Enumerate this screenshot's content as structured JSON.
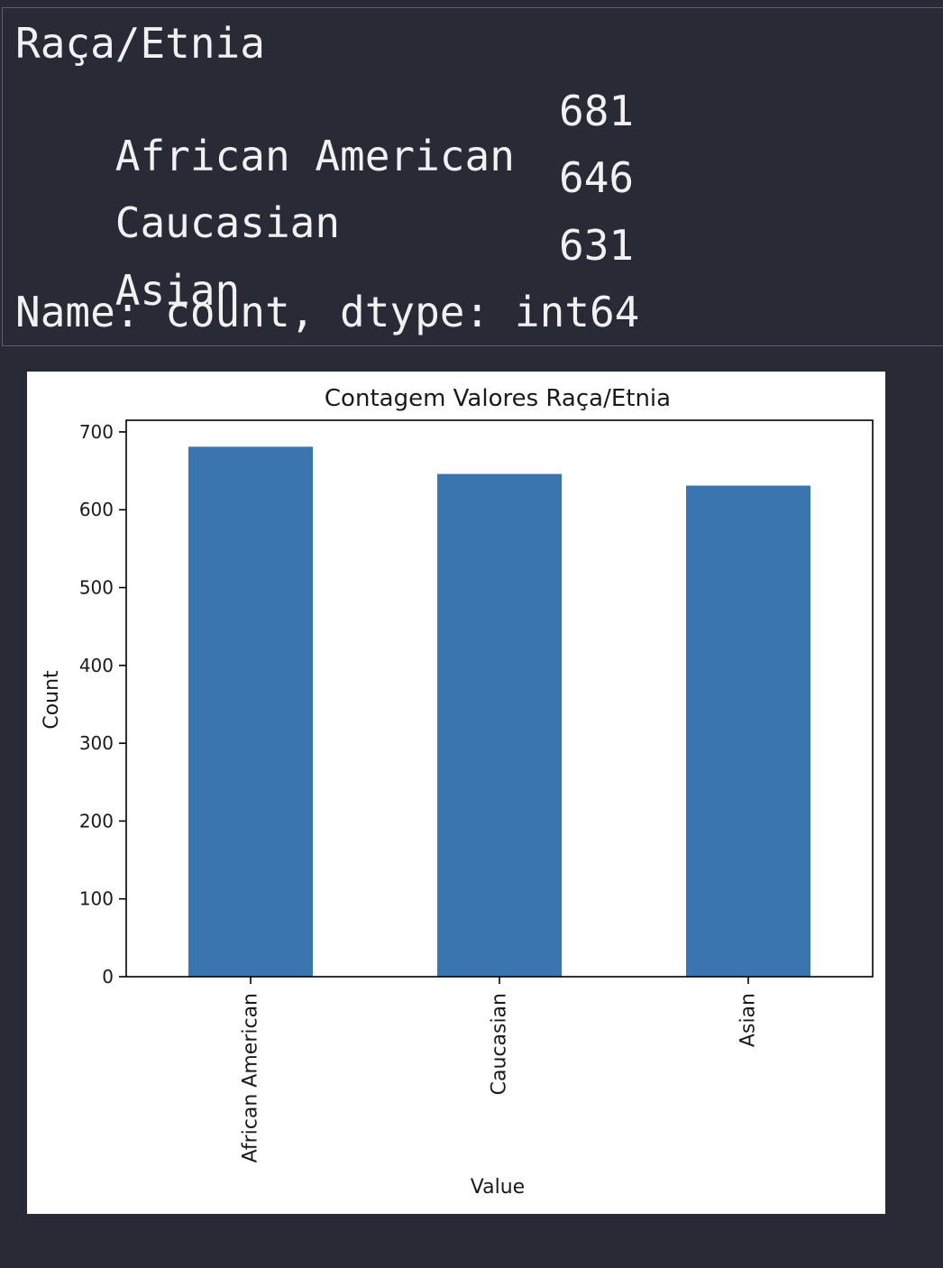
{
  "output": {
    "header": "Raça/Etnia",
    "rows": [
      {
        "label": "African American",
        "value": "681"
      },
      {
        "label": "Caucasian",
        "value": "646"
      },
      {
        "label": "Asian",
        "value": "631"
      }
    ],
    "footer": "Name: count, dtype: int64"
  },
  "chart_data": {
    "type": "bar",
    "title": "Contagem Valores Raça/Etnia",
    "xlabel": "Value",
    "ylabel": "Count",
    "categories": [
      "African American",
      "Caucasian",
      "Asian"
    ],
    "values": [
      681,
      646,
      631
    ],
    "ylim": [
      0,
      715
    ],
    "yticks": [
      0,
      100,
      200,
      300,
      400,
      500,
      600,
      700
    ],
    "bar_color": "#3a75af",
    "grid": false,
    "legend": "none"
  }
}
